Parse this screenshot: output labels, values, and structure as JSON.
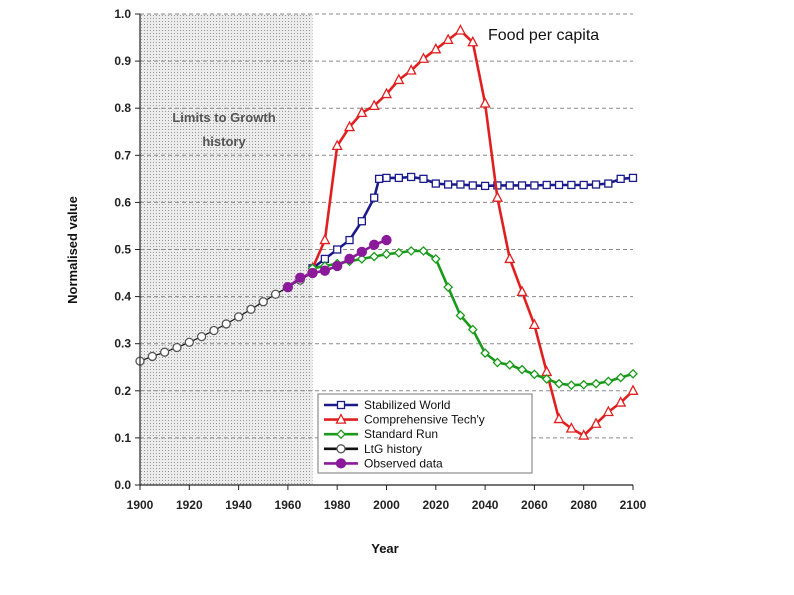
{
  "chart_data": {
    "type": "line",
    "title": "Food per capita",
    "xlabel": "Year",
    "ylabel": "Normalised value",
    "xlim": [
      1900,
      2100
    ],
    "ylim": [
      0,
      1.0
    ],
    "x_ticks": [
      "1900",
      "1920",
      "1940",
      "1960",
      "1980",
      "2000",
      "2020",
      "2040",
      "2060",
      "2080",
      "2100"
    ],
    "y_ticks": [
      "0.0",
      "0.1",
      "0.2",
      "0.3",
      "0.4",
      "0.5",
      "0.6",
      "0.7",
      "0.8",
      "0.9",
      "1.0"
    ],
    "grid": "horizontal dashed",
    "shaded_region": {
      "x_range": [
        1900,
        1970
      ],
      "label_lines": [
        "Limits to Growth",
        "history"
      ]
    },
    "legend_position": "bottom-center",
    "series": [
      {
        "name": "Stabilized World",
        "color": "#1a1a8c",
        "marker": "square",
        "points": [
          [
            1970,
            0.46
          ],
          [
            1975,
            0.48
          ],
          [
            1980,
            0.5
          ],
          [
            1985,
            0.52
          ],
          [
            1990,
            0.56
          ],
          [
            1995,
            0.61
          ],
          [
            1997,
            0.65
          ],
          [
            2000,
            0.652
          ],
          [
            2005,
            0.652
          ],
          [
            2010,
            0.654
          ],
          [
            2015,
            0.65
          ],
          [
            2020,
            0.64
          ],
          [
            2025,
            0.638
          ],
          [
            2030,
            0.638
          ],
          [
            2035,
            0.636
          ],
          [
            2040,
            0.635
          ],
          [
            2045,
            0.636
          ],
          [
            2050,
            0.636
          ],
          [
            2055,
            0.636
          ],
          [
            2060,
            0.636
          ],
          [
            2065,
            0.637
          ],
          [
            2070,
            0.637
          ],
          [
            2075,
            0.637
          ],
          [
            2080,
            0.637
          ],
          [
            2085,
            0.638
          ],
          [
            2090,
            0.64
          ],
          [
            2095,
            0.65
          ],
          [
            2100,
            0.652
          ]
        ]
      },
      {
        "name": "Comprehensive Tech'y",
        "color": "#e02020",
        "marker": "triangle",
        "points": [
          [
            1970,
            0.46
          ],
          [
            1975,
            0.52
          ],
          [
            1980,
            0.72
          ],
          [
            1985,
            0.76
          ],
          [
            1990,
            0.79
          ],
          [
            1995,
            0.805
          ],
          [
            2000,
            0.83
          ],
          [
            2005,
            0.86
          ],
          [
            2010,
            0.88
          ],
          [
            2015,
            0.905
          ],
          [
            2020,
            0.925
          ],
          [
            2025,
            0.945
          ],
          [
            2030,
            0.965
          ],
          [
            2035,
            0.94
          ],
          [
            2040,
            0.81
          ],
          [
            2045,
            0.61
          ],
          [
            2050,
            0.48
          ],
          [
            2055,
            0.41
          ],
          [
            2060,
            0.34
          ],
          [
            2065,
            0.24
          ],
          [
            2070,
            0.14
          ],
          [
            2075,
            0.12
          ],
          [
            2080,
            0.105
          ],
          [
            2085,
            0.13
          ],
          [
            2090,
            0.155
          ],
          [
            2095,
            0.175
          ],
          [
            2100,
            0.2
          ]
        ]
      },
      {
        "name": "Standard Run",
        "color": "#1a9a1a",
        "marker": "diamond",
        "points": [
          [
            1970,
            0.46
          ],
          [
            1975,
            0.465
          ],
          [
            1980,
            0.47
          ],
          [
            1985,
            0.475
          ],
          [
            1990,
            0.48
          ],
          [
            1995,
            0.485
          ],
          [
            2000,
            0.49
          ],
          [
            2005,
            0.493
          ],
          [
            2010,
            0.497
          ],
          [
            2015,
            0.497
          ],
          [
            2020,
            0.48
          ],
          [
            2025,
            0.42
          ],
          [
            2030,
            0.36
          ],
          [
            2035,
            0.33
          ],
          [
            2040,
            0.28
          ],
          [
            2045,
            0.26
          ],
          [
            2050,
            0.255
          ],
          [
            2055,
            0.245
          ],
          [
            2060,
            0.235
          ],
          [
            2065,
            0.225
          ],
          [
            2070,
            0.215
          ],
          [
            2075,
            0.212
          ],
          [
            2080,
            0.213
          ],
          [
            2085,
            0.215
          ],
          [
            2090,
            0.22
          ],
          [
            2095,
            0.228
          ],
          [
            2100,
            0.236
          ]
        ]
      },
      {
        "name": "LtG history",
        "color": "#111111",
        "marker": "circle-open",
        "points": [
          [
            1900,
            0.263
          ],
          [
            1905,
            0.273
          ],
          [
            1910,
            0.282
          ],
          [
            1915,
            0.292
          ],
          [
            1920,
            0.303
          ],
          [
            1925,
            0.315
          ],
          [
            1930,
            0.328
          ],
          [
            1935,
            0.342
          ],
          [
            1940,
            0.357
          ],
          [
            1945,
            0.373
          ],
          [
            1950,
            0.389
          ],
          [
            1955,
            0.405
          ],
          [
            1960,
            0.42
          ],
          [
            1965,
            0.435
          ],
          [
            1970,
            0.45
          ]
        ]
      },
      {
        "name": "Observed data",
        "color": "#8b1a9a",
        "marker": "circle-filled",
        "points": [
          [
            1960,
            0.42
          ],
          [
            1965,
            0.44
          ],
          [
            1970,
            0.45
          ],
          [
            1975,
            0.455
          ],
          [
            1980,
            0.465
          ],
          [
            1985,
            0.48
          ],
          [
            1990,
            0.495
          ],
          [
            1995,
            0.51
          ],
          [
            2000,
            0.52
          ]
        ]
      }
    ]
  }
}
